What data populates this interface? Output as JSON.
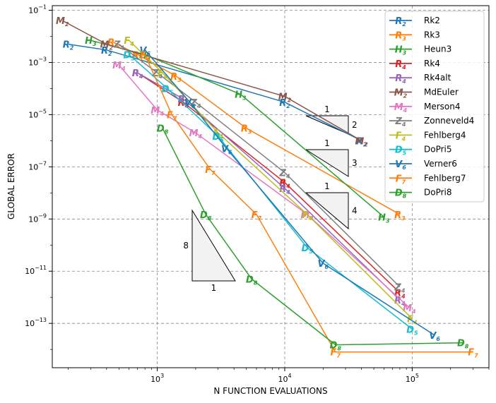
{
  "chart_data": {
    "type": "line",
    "xlabel": "N FUNCTION EVALUATIONS",
    "ylabel": "GLOBAL ERROR",
    "x_scale": "log",
    "y_scale": "log",
    "xlim": [
      150,
      400000
    ],
    "ylim": [
      2e-15,
      0.15
    ],
    "x_ticks": [
      {
        "v": 1000,
        "base": "10",
        "exp": "3"
      },
      {
        "v": 10000,
        "base": "10",
        "exp": "4"
      },
      {
        "v": 100000,
        "base": "10",
        "exp": "5"
      }
    ],
    "y_ticks": [
      {
        "v": 0.1,
        "base": "10",
        "exp": "−1"
      },
      {
        "v": 0.001,
        "base": "10",
        "exp": "−3"
      },
      {
        "v": 1e-05,
        "base": "10",
        "exp": "−5"
      },
      {
        "v": 1e-07,
        "base": "10",
        "exp": "−7"
      },
      {
        "v": 1e-09,
        "base": "10",
        "exp": "−9"
      },
      {
        "v": 1e-11,
        "base": "10",
        "exp": "−11"
      },
      {
        "v": 1e-13,
        "base": "10",
        "exp": "−13"
      }
    ],
    "grid": true,
    "legend_position": "top-right",
    "series": [
      {
        "name": "Rk2",
        "marker": "R",
        "sub": "2",
        "color": "#1f77b4",
        "x": [
          200,
          400,
          10000,
          40000
        ],
        "y": [
          0.005,
          0.003,
          3e-05,
          1e-06
        ]
      },
      {
        "name": "Rk3",
        "marker": "R",
        "sub": "3",
        "color": "#ff7f0e",
        "x": [
          450,
          700,
          1400,
          5000,
          80000
        ],
        "y": [
          0.006,
          0.002,
          0.0003,
          3e-06,
          1.5e-09
        ]
      },
      {
        "name": "Heun3",
        "marker": "H",
        "sub": "3",
        "color": "#2ca02c",
        "x": [
          300,
          800,
          4500,
          60000
        ],
        "y": [
          0.007,
          0.002,
          6e-05,
          1.2e-09
        ]
      },
      {
        "name": "Rk4",
        "marker": "R",
        "sub": "4",
        "color": "#d62728",
        "x": [
          700,
          1600,
          10000,
          80000
        ],
        "y": [
          0.0004,
          3e-05,
          2.5e-08,
          1.5e-12
        ]
      },
      {
        "name": "Rk4alt",
        "marker": "R",
        "sub": "4",
        "color": "#9467bd",
        "x": [
          700,
          1600,
          10000,
          80000
        ],
        "y": [
          0.0004,
          4e-05,
          1.5e-08,
          8e-13
        ]
      },
      {
        "name": "MdEuler",
        "marker": "M",
        "sub": "2",
        "color": "#8c564b",
        "x": [
          180,
          400,
          10000,
          40000
        ],
        "y": [
          0.04,
          0.005,
          5e-05,
          1e-06
        ]
      },
      {
        "name": "Merson4",
        "marker": "M",
        "sub": "4",
        "color": "#e377c2",
        "x": [
          500,
          1000,
          2000,
          15000,
          95000
        ],
        "y": [
          0.0008,
          1.5e-05,
          2e-06,
          1.5e-09,
          4e-13
        ]
      },
      {
        "name": "Zonneveld4",
        "marker": "Z",
        "sub": "4",
        "color": "#7f7f7f",
        "x": [
          500,
          1000,
          2000,
          10000,
          80000
        ],
        "y": [
          0.005,
          0.0004,
          3e-05,
          6e-08,
          2.5e-12
        ]
      },
      {
        "name": "Fehlberg4",
        "marker": "F",
        "sub": "4",
        "color": "#bcbd22",
        "x": [
          600,
          1100,
          3000,
          15000,
          100000
        ],
        "y": [
          0.007,
          0.0004,
          2e-06,
          1.5e-09,
          1.5e-13
        ]
      },
      {
        "name": "DoPri5",
        "marker": "D",
        "sub": "5",
        "color": "#17becf",
        "x": [
          600,
          1200,
          3000,
          15000,
          100000
        ],
        "y": [
          0.002,
          0.0001,
          1.5e-06,
          8e-11,
          6e-14
        ]
      },
      {
        "name": "Verner6",
        "marker": "V",
        "sub": "6",
        "color": "#1f77b4",
        "x": [
          800,
          1800,
          3500,
          20000,
          150000
        ],
        "y": [
          0.003,
          3e-05,
          5e-07,
          2e-11,
          3.5e-14
        ]
      },
      {
        "name": "Fehlberg7",
        "marker": "F",
        "sub": "7",
        "color": "#ff7f0e",
        "x": [
          800,
          1300,
          2600,
          6000,
          25000,
          300000
        ],
        "y": [
          0.002,
          1e-05,
          8e-08,
          1.5e-09,
          8e-15,
          8e-15
        ]
      },
      {
        "name": "DoPri8",
        "marker": "D",
        "sub": "8",
        "color": "#2ca02c",
        "x": [
          1100,
          2400,
          5500,
          25000,
          250000
        ],
        "y": [
          3e-06,
          1.5e-09,
          5e-12,
          1.5e-14,
          1.8e-14
        ]
      }
    ],
    "slope_triangles": [
      {
        "run": "1",
        "rise": "2"
      },
      {
        "run": "1",
        "rise": "3"
      },
      {
        "run": "1",
        "rise": "4"
      },
      {
        "run": "1",
        "rise": "8"
      }
    ]
  }
}
